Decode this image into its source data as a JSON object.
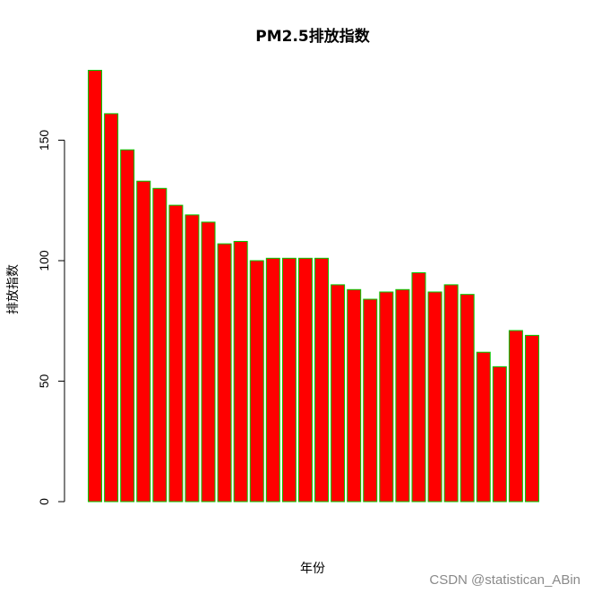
{
  "chart_data": {
    "type": "bar",
    "title": "PM2.5排放指数",
    "xlabel": "年份",
    "ylabel": "排放指数",
    "ylim": [
      0,
      181
    ],
    "yticks": [
      0,
      50,
      100,
      150
    ],
    "bar_fill": "#ff0000",
    "bar_border": "#00cc00",
    "values": [
      179,
      161,
      146,
      133,
      130,
      123,
      119,
      116,
      107,
      108,
      100,
      101,
      101,
      101,
      101,
      90,
      88,
      84,
      87,
      88,
      95,
      87,
      90,
      86,
      62,
      56,
      71,
      69
    ]
  },
  "watermark": "CSDN @statistican_ABin"
}
